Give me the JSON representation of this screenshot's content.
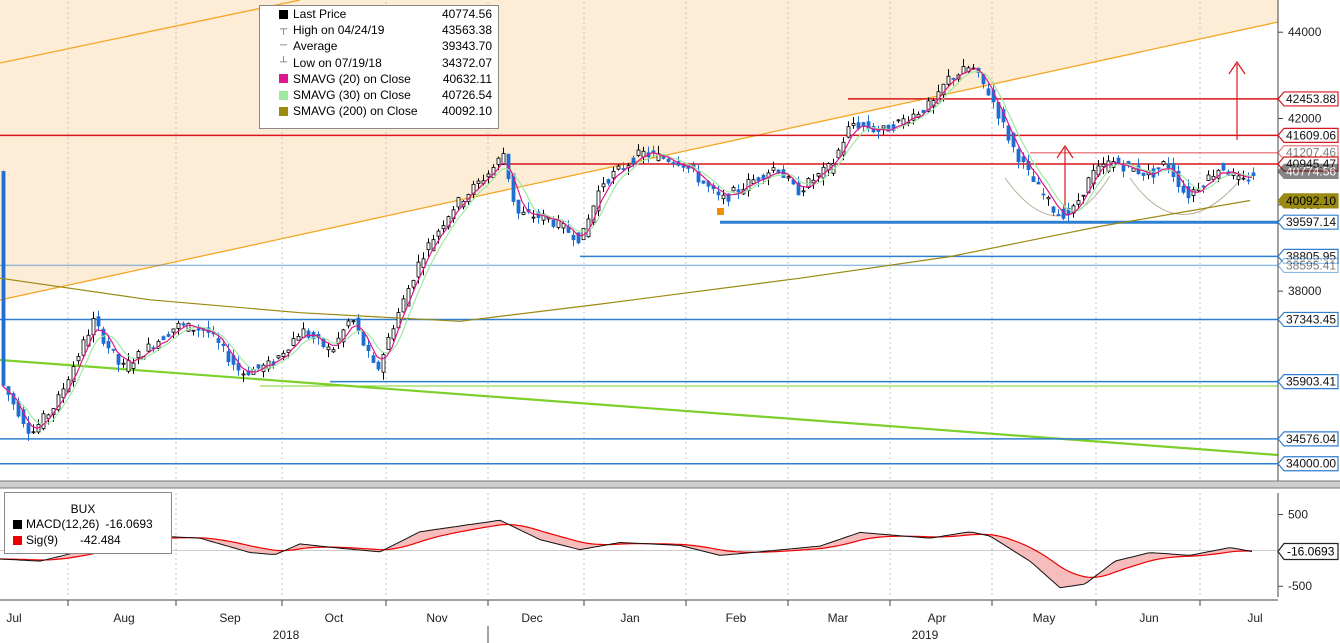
{
  "chart_data": {
    "type": "candlestick",
    "x_months": [
      "Jul",
      "Aug",
      "Sep",
      "Oct",
      "Nov",
      "Dec",
      "Jan",
      "Feb",
      "Mar",
      "Apr",
      "May",
      "Jun",
      "Jul"
    ],
    "year_labels": [
      "2018",
      "2019"
    ],
    "price_axis": {
      "ticks": [
        44000,
        42000,
        40000,
        38000
      ],
      "ylim": [
        33600,
        44700
      ]
    },
    "macd_axis": {
      "ticks": [
        "500",
        "-500"
      ],
      "ylim": [
        -650,
        800
      ]
    },
    "legend": [
      {
        "name": "Last Price",
        "value": "40774.56",
        "color": "#000000"
      },
      {
        "name": "High on 04/24/19",
        "value": "43563.38",
        "icon": "high-marker"
      },
      {
        "name": "Average",
        "value": "39343.70",
        "icon": "average-marker"
      },
      {
        "name": "Low on 07/19/18",
        "value": "34372.07",
        "icon": "low-marker"
      },
      {
        "name": "SMAVG (20)  on Close",
        "value": "40632.11",
        "color": "#e0168c"
      },
      {
        "name": "SMAVG (30)  on Close",
        "value": "40726.54",
        "color": "#9fe8a0"
      },
      {
        "name": "SMAVG (200)  on Close",
        "value": "40092.10",
        "color": "#9a8a12"
      }
    ],
    "price_tags": [
      {
        "label": "42453.88",
        "value": 42453.88,
        "kind": "red"
      },
      {
        "label": "41609.06",
        "value": 41609.06,
        "kind": "red"
      },
      {
        "label": "41207.46",
        "value": 41207.46,
        "kind": "red-faded"
      },
      {
        "label": "40945.47",
        "value": 40945.47,
        "kind": "red"
      },
      {
        "label": "40774.56",
        "value": 40774.56,
        "kind": "black-faded"
      },
      {
        "label": "40092.10",
        "value": 40092.1,
        "kind": "olive"
      },
      {
        "label": "39597.14",
        "value": 39597.14,
        "kind": "blue"
      },
      {
        "label": "38805.95",
        "value": 38805.95,
        "kind": "blue"
      },
      {
        "label": "38595.41",
        "value": 38595.41,
        "kind": "blue-faded"
      },
      {
        "label": "37343.45",
        "value": 37343.45,
        "kind": "blue"
      },
      {
        "label": "35903.41",
        "value": 35903.41,
        "kind": "blue"
      },
      {
        "label": "34576.04",
        "value": 34576.04,
        "kind": "blue"
      },
      {
        "label": "34000.00",
        "value": 34000.0,
        "kind": "blue"
      }
    ],
    "macd_legend": {
      "title": "BUX",
      "macd_label": "MACD(12,26)",
      "macd_value": "-16.0693",
      "sig_label": "Sig(9)",
      "sig_value": "-42.484"
    },
    "macd_tag": "-16.0693",
    "colors": {
      "up": "#000000",
      "down": "#1f6fd1",
      "red_line": "#d8161b",
      "blue_line": "#2f7fd0",
      "green_trend": "#7dcf2a",
      "orange_channel": "#f5a623",
      "channel_fill": "#fde9cf"
    }
  }
}
